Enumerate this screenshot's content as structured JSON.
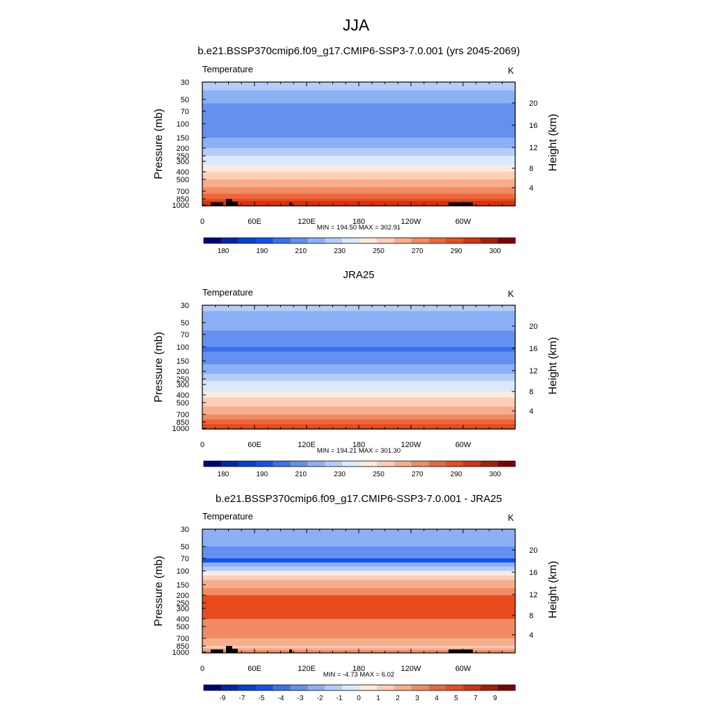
{
  "figure": {
    "title": "JJA"
  },
  "chart_data": [
    {
      "type": "heatmap",
      "title": "b.e21.BSSP370cmip6.f09_g17.CMIP6-SSP3-7.0.001 (yrs 2045-2069)",
      "variable": "Temperature",
      "units": "K",
      "ylabel": "Pressure (mb)",
      "ylabel_right": "Height (km)",
      "x_ticks": [
        "0",
        "60E",
        "120E",
        "180",
        "120W",
        "60W"
      ],
      "x_range": [
        0,
        360
      ],
      "y_ticks": [
        "30",
        "50",
        "70",
        "100",
        "150",
        "200",
        "250",
        "300",
        "400",
        "500",
        "700",
        "850",
        "1000"
      ],
      "y_right_ticks": [
        "20",
        "16",
        "12",
        "8",
        "4"
      ],
      "stats": "MIN = 194.50   MAX = 302.91",
      "colorbar_labels": [
        "180",
        "190",
        "210",
        "230",
        "250",
        "270",
        "290",
        "300"
      ],
      "has_topography": true,
      "bands": [
        {
          "level": "30",
          "value": 222
        },
        {
          "level": "50",
          "value": 212
        },
        {
          "level": "70",
          "value": 205
        },
        {
          "level": "100",
          "value": 202
        },
        {
          "level": "150",
          "value": 212
        },
        {
          "level": "200",
          "value": 222
        },
        {
          "level": "250",
          "value": 232
        },
        {
          "level": "300",
          "value": 240
        },
        {
          "level": "400",
          "value": 252
        },
        {
          "level": "500",
          "value": 262
        },
        {
          "level": "700",
          "value": 278
        },
        {
          "level": "850",
          "value": 288
        },
        {
          "level": "1000",
          "value": 296
        }
      ]
    },
    {
      "type": "heatmap",
      "title": "JRA25",
      "variable": "Temperature",
      "units": "K",
      "ylabel": "Pressure (mb)",
      "ylabel_right": "Height (km)",
      "x_ticks": [
        "0",
        "60E",
        "120E",
        "180",
        "120W",
        "60W"
      ],
      "x_range": [
        0,
        360
      ],
      "y_ticks": [
        "30",
        "50",
        "70",
        "100",
        "150",
        "200",
        "250",
        "300",
        "400",
        "500",
        "700",
        "850",
        "1000"
      ],
      "y_right_ticks": [
        "20",
        "16",
        "12",
        "8",
        "4"
      ],
      "stats": "MIN = 194.21   MAX = 301.30",
      "colorbar_labels": [
        "180",
        "190",
        "210",
        "230",
        "250",
        "270",
        "290",
        "300"
      ],
      "has_topography": false,
      "bands": [
        {
          "level": "30",
          "value": 222
        },
        {
          "level": "50",
          "value": 214
        },
        {
          "level": "70",
          "value": 206
        },
        {
          "level": "100",
          "value": 200
        },
        {
          "level": "150",
          "value": 208
        },
        {
          "level": "200",
          "value": 218
        },
        {
          "level": "250",
          "value": 228
        },
        {
          "level": "300",
          "value": 236
        },
        {
          "level": "400",
          "value": 248
        },
        {
          "level": "500",
          "value": 258
        },
        {
          "level": "700",
          "value": 274
        },
        {
          "level": "850",
          "value": 284
        },
        {
          "level": "1000",
          "value": 292
        }
      ]
    },
    {
      "type": "heatmap",
      "title": "b.e21.BSSP370cmip6.f09_g17.CMIP6-SSP3-7.0.001 - JRA25",
      "variable": "Temperature",
      "units": "K",
      "ylabel": "Pressure (mb)",
      "ylabel_right": "Height (km)",
      "x_ticks": [
        "0",
        "60E",
        "120E",
        "180",
        "120W",
        "60W"
      ],
      "x_range": [
        0,
        360
      ],
      "y_ticks": [
        "30",
        "50",
        "70",
        "100",
        "150",
        "200",
        "250",
        "300",
        "400",
        "500",
        "700",
        "850",
        "1000"
      ],
      "y_right_ticks": [
        "20",
        "16",
        "12",
        "8",
        "4"
      ],
      "stats": "MIN =  -4.73   MAX =   6.02",
      "colorbar_labels": [
        "-9",
        "-7",
        "-5",
        "-4",
        "-3",
        "-2",
        "-1",
        "0",
        "1",
        "2",
        "3",
        "4",
        "5",
        "7",
        "9"
      ],
      "has_topography": true,
      "bands": [
        {
          "level": "30",
          "value": -2
        },
        {
          "level": "50",
          "value": -3
        },
        {
          "level": "70",
          "value": -4
        },
        {
          "level": "100",
          "value": 0.5
        },
        {
          "level": "150",
          "value": 3
        },
        {
          "level": "200",
          "value": 4.5
        },
        {
          "level": "250",
          "value": 4.5
        },
        {
          "level": "300",
          "value": 4.5
        },
        {
          "level": "400",
          "value": 4
        },
        {
          "level": "500",
          "value": 4
        },
        {
          "level": "700",
          "value": 3
        },
        {
          "level": "850",
          "value": 2
        },
        {
          "level": "1000",
          "value": 4
        }
      ]
    }
  ],
  "colormap": [
    "#00007f",
    "#0026b0",
    "#0044d6",
    "#1450f0",
    "#3c70f0",
    "#6490f0",
    "#8cb0f5",
    "#b4cdf8",
    "#dce8fb",
    "#fbeae0",
    "#fbcfb8",
    "#f7ae8c",
    "#f28b64",
    "#ec683c",
    "#e84c1e",
    "#d33312",
    "#aa1e08",
    "#820000"
  ]
}
